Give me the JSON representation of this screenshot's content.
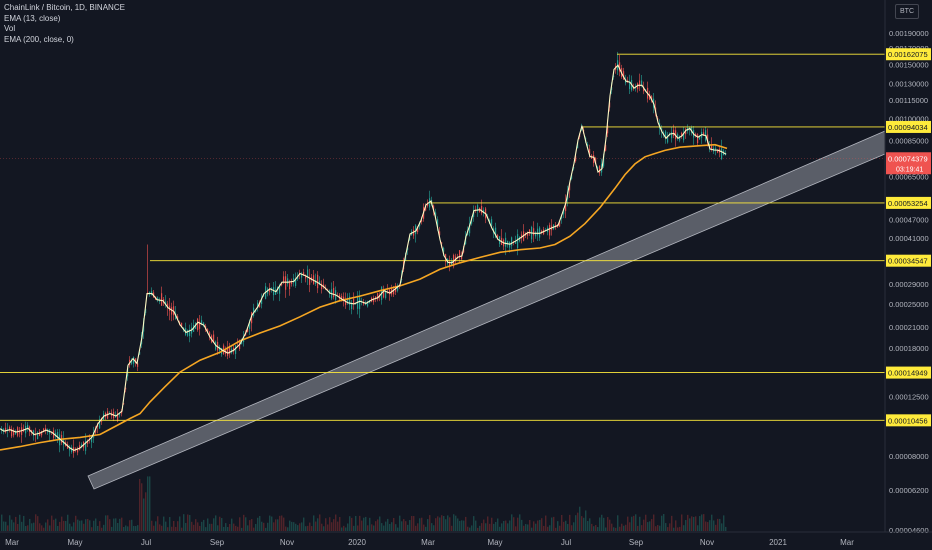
{
  "legend": {
    "symbol": "ChainLink / Bitcoin, 1D, BINANCE",
    "ema13": "EMA (13, close)",
    "vol": "Vol",
    "ema200": "EMA (200, close, 0)"
  },
  "currency_button": "BTC",
  "colors": {
    "background": "#131722",
    "axis_text": "#b2b5be",
    "price_line": "#fff9c4",
    "ema200": "#f5a623",
    "level": "#ffeb3b",
    "channel": "#b2b5be",
    "candle_up": "#26a69a",
    "candle_down": "#ef5350",
    "current_price_tag": "#ef5350"
  },
  "chart_data": {
    "type": "line",
    "y_scale": "log",
    "y_ticks": [
      "0.00190000",
      "0.00170000",
      "0.00150000",
      "0.00130000",
      "0.00115000",
      "0.00100000",
      "0.00085000",
      "0.00065000",
      "0.00047000",
      "0.00041000",
      "0.00029000",
      "0.00025000",
      "0.00021000",
      "0.00018000",
      "0.00012500",
      "0.00008000",
      "0.00006200",
      "0.00004600"
    ],
    "x_ticks": [
      "Mar",
      "May",
      "Jul",
      "Sep",
      "Nov",
      "2020",
      "Mar",
      "May",
      "Jul",
      "Sep",
      "Nov",
      "2021",
      "Mar"
    ],
    "levels": [
      "0.00162075",
      "0.00094034",
      "0.00053254",
      "0.00034547",
      "0.00014949",
      "0.00010456"
    ],
    "current_price": "0.00074379",
    "countdown": "03:19:41",
    "series": [
      {
        "name": "EMA (13, close)",
        "values": [
          [
            0,
            9.82e-05
          ],
          [
            4,
            9.64e-05
          ],
          [
            10,
            9.75e-05
          ],
          [
            16,
            9.58e-05
          ],
          [
            22,
            9.68e-05
          ],
          [
            28,
            9.85e-05
          ],
          [
            34,
            9.4e-05
          ],
          [
            40,
            9.5e-05
          ],
          [
            46,
            9.72e-05
          ],
          [
            52,
            9.55e-05
          ],
          [
            58,
            9.2e-05
          ],
          [
            64,
            8.85e-05
          ],
          [
            70,
            8.5e-05
          ],
          [
            74,
            8.35e-05
          ],
          [
            80,
            8.5e-05
          ],
          [
            86,
            8.85e-05
          ],
          [
            92,
            9.22e-05
          ],
          [
            98,
            0.000102
          ],
          [
            104,
            0.000108
          ],
          [
            110,
            0.00011
          ],
          [
            116,
            0.000108
          ],
          [
            122,
            0.000112
          ],
          [
            128,
            0.000158
          ],
          [
            133,
            0.000166
          ],
          [
            137,
            0.00016
          ],
          [
            142,
            0.000195
          ],
          [
            147,
            0.00027
          ],
          [
            152,
            0.00027
          ],
          [
            157,
            0.000258
          ],
          [
            163,
            0.000256
          ],
          [
            168,
            0.000243
          ],
          [
            174,
            0.000236
          ],
          [
            180,
            0.000214
          ],
          [
            186,
            0.000202
          ],
          [
            192,
            0.000206
          ],
          [
            198,
            0.000218
          ],
          [
            204,
            0.000213
          ],
          [
            210,
            0.000195
          ],
          [
            216,
            0.000183
          ],
          [
            222,
            0.000177
          ],
          [
            228,
            0.000173
          ],
          [
            234,
            0.000177
          ],
          [
            240,
            0.000185
          ],
          [
            246,
            0.000202
          ],
          [
            252,
            0.00023
          ],
          [
            258,
            0.000245
          ],
          [
            264,
            0.00027
          ],
          [
            270,
            0.00028
          ],
          [
            276,
            0.000274
          ],
          [
            282,
            0.000294
          ],
          [
            288,
            0.000294
          ],
          [
            294,
            0.000296
          ],
          [
            300,
            0.000314
          ],
          [
            306,
            0.000308
          ],
          [
            312,
            0.0003
          ],
          [
            318,
            0.000293
          ],
          [
            324,
            0.000284
          ],
          [
            330,
            0.000271
          ],
          [
            336,
            0.000267
          ],
          [
            342,
            0.000259
          ],
          [
            348,
            0.000252
          ],
          [
            354,
            0.00025
          ],
          [
            360,
            0.000255
          ],
          [
            366,
            0.000251
          ],
          [
            372,
            0.000258
          ],
          [
            378,
            0.000262
          ],
          [
            384,
            0.000276
          ],
          [
            390,
            0.000271
          ],
          [
            396,
            0.000281
          ],
          [
            400,
            0.000288
          ],
          [
            405,
            0.000351
          ],
          [
            410,
            0.000422
          ],
          [
            416,
            0.000432
          ],
          [
            421,
            0.000467
          ],
          [
            426,
            0.000525
          ],
          [
            431,
            0.00054
          ],
          [
            435,
            0.000485
          ],
          [
            440,
            0.000405
          ],
          [
            444,
            0.000359
          ],
          [
            448,
            0.000341
          ],
          [
            452,
            0.00034
          ],
          [
            458,
            0.000355
          ],
          [
            462,
            0.000358
          ],
          [
            466,
            0.000414
          ],
          [
            470,
            0.000453
          ],
          [
            474,
            0.000503
          ],
          [
            480,
            0.000506
          ],
          [
            486,
            0.00049
          ],
          [
            492,
            0.00044
          ],
          [
            498,
            0.000405
          ],
          [
            504,
            0.000394
          ],
          [
            510,
            0.000391
          ],
          [
            516,
            0.000401
          ],
          [
            522,
            0.000413
          ],
          [
            528,
            0.000427
          ],
          [
            534,
            0.000424
          ],
          [
            540,
            0.000424
          ],
          [
            546,
            0.000433
          ],
          [
            552,
            0.000442
          ],
          [
            558,
            0.00045
          ],
          [
            562,
            0.000489
          ],
          [
            566,
            0.000534
          ],
          [
            570,
            0.000626
          ],
          [
            574,
            0.000716
          ],
          [
            578,
            0.000852
          ],
          [
            582,
            0.000949
          ],
          [
            586,
            0.000837
          ],
          [
            590,
            0.000753
          ],
          [
            594,
            0.000749
          ],
          [
            598,
            0.000671
          ],
          [
            602,
            0.000688
          ],
          [
            606,
            0.000863
          ],
          [
            610,
            0.001187
          ],
          [
            614,
            0.001447
          ],
          [
            618,
            0.001493
          ],
          [
            622,
            0.001399
          ],
          [
            626,
            0.001324
          ],
          [
            630,
            0.001315
          ],
          [
            634,
            0.001257
          ],
          [
            638,
            0.001284
          ],
          [
            642,
            0.001284
          ],
          [
            646,
            0.001226
          ],
          [
            650,
            0.001183
          ],
          [
            654,
            0.001113
          ],
          [
            658,
            0.000972
          ],
          [
            662,
            0.000907
          ],
          [
            666,
            0.000864
          ],
          [
            670,
            0.000892
          ],
          [
            674,
            0.000895
          ],
          [
            678,
            0.000864
          ],
          [
            682,
            0.00088
          ],
          [
            686,
            0.000918
          ],
          [
            690,
            0.000929
          ],
          [
            694,
            0.000888
          ],
          [
            698,
            0.000871
          ],
          [
            702,
            0.000888
          ],
          [
            706,
            0.000881
          ],
          [
            710,
            0.000797
          ],
          [
            714,
            0.000791
          ],
          [
            718,
            0.00079
          ],
          [
            722,
            0.00078
          ],
          [
            726,
            0.000767
          ]
        ]
      },
      {
        "name": "EMA (200, close, 0)",
        "values": [
          [
            0,
            8.38e-05
          ],
          [
            20,
            8.59e-05
          ],
          [
            40,
            8.85e-05
          ],
          [
            60,
            9.07e-05
          ],
          [
            80,
            9.2e-05
          ],
          [
            100,
            9.4e-05
          ],
          [
            115,
            9.98e-05
          ],
          [
            130,
            0.000106
          ],
          [
            140,
            0.00011
          ],
          [
            150,
            0.00012
          ],
          [
            165,
            0.0001345
          ],
          [
            180,
            0.00015
          ],
          [
            200,
            0.000164
          ],
          [
            220,
            0.000174
          ],
          [
            240,
            0.0001895
          ],
          [
            260,
            0.000201
          ],
          [
            280,
            0.000212
          ],
          [
            300,
            0.000227
          ],
          [
            320,
            0.000244
          ],
          [
            340,
            0.000256
          ],
          [
            360,
            0.000265
          ],
          [
            380,
            0.000276
          ],
          [
            400,
            0.000286
          ],
          [
            420,
            0.000301
          ],
          [
            440,
            0.000324
          ],
          [
            460,
            0.00034
          ],
          [
            480,
            0.000354
          ],
          [
            500,
            0.000368
          ],
          [
            520,
            0.000375
          ],
          [
            540,
            0.00038
          ],
          [
            555,
            0.00039
          ],
          [
            570,
            0.000415
          ],
          [
            585,
            0.000456
          ],
          [
            600,
            0.000514
          ],
          [
            615,
            0.000594
          ],
          [
            625,
            0.000658
          ],
          [
            635,
            0.000713
          ],
          [
            645,
            0.000752
          ],
          [
            655,
            0.000771
          ],
          [
            665,
            0.000789
          ],
          [
            680,
            0.000808
          ],
          [
            700,
            0.000817
          ],
          [
            715,
            0.000823
          ],
          [
            727,
            0.000801
          ]
        ]
      }
    ]
  }
}
